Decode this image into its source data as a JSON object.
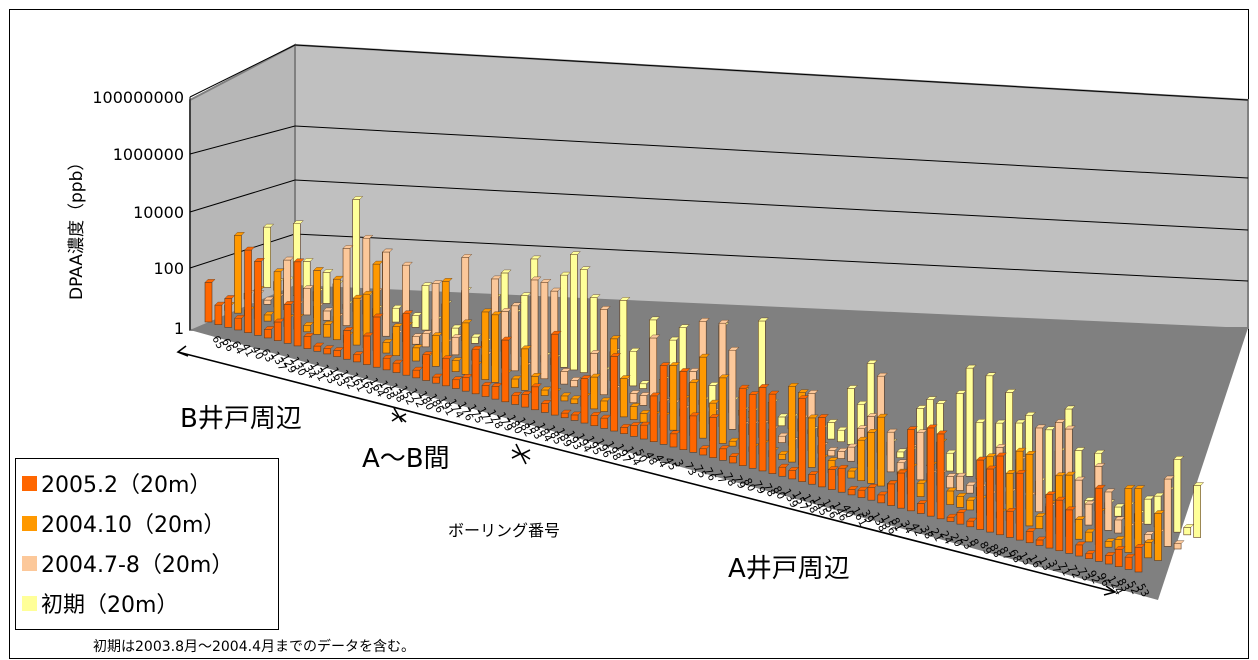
{
  "chart_data": {
    "type": "bar",
    "chart_style": "3d-column",
    "ylabel": "DPAA濃度（ppb）",
    "xlabel": "ボーリング番号",
    "yscale": "log",
    "ylim": [
      1,
      100000000
    ],
    "yticks": [
      "1",
      "100",
      "10000",
      "1000000",
      "100000000"
    ],
    "legend_position": "bottom-left",
    "categories": [
      "65",
      "66",
      "64",
      "41",
      "40",
      "63",
      "137",
      "129",
      "130",
      "134",
      "131",
      "133",
      "163",
      "162",
      "161",
      "165",
      "164",
      "168",
      "138",
      "152",
      "172",
      "180",
      "186",
      "191",
      "174",
      "176",
      "175",
      "177",
      "178",
      "179",
      "180",
      "182",
      "183",
      "184",
      "185",
      "189",
      "193",
      "194",
      "195",
      "196",
      "198",
      "197",
      "154",
      "50",
      "48",
      "44",
      "45",
      "3",
      "73",
      "75",
      "76",
      "77",
      "78",
      "79",
      "80",
      "79",
      "78",
      "80",
      "139",
      "157",
      "158",
      "145",
      "156",
      "146",
      "40",
      "161",
      "39",
      "138",
      "156",
      "81",
      "34",
      "42",
      "38",
      "21",
      "24",
      "20",
      "23",
      "8",
      "89",
      "88",
      "87",
      "68",
      "15",
      "16",
      "13",
      "37",
      "71",
      "72",
      "73",
      "92",
      "96",
      "124",
      "83",
      "52",
      "53"
    ],
    "regions": [
      "B井戸周辺",
      "A～B間",
      "A井戸周辺"
    ],
    "series": [
      {
        "name": "2005.2（20m）",
        "color": "#ff6600"
      },
      {
        "name": "2004.10（20m）",
        "color": "#ff9900"
      },
      {
        "name": "2004.7-8（20m）",
        "color": "#fcc89a"
      },
      {
        "name": "初期（20m）",
        "color": "#ffff99"
      }
    ],
    "note": "初期は2003.8月～2004.4月までのデータを含む。"
  }
}
